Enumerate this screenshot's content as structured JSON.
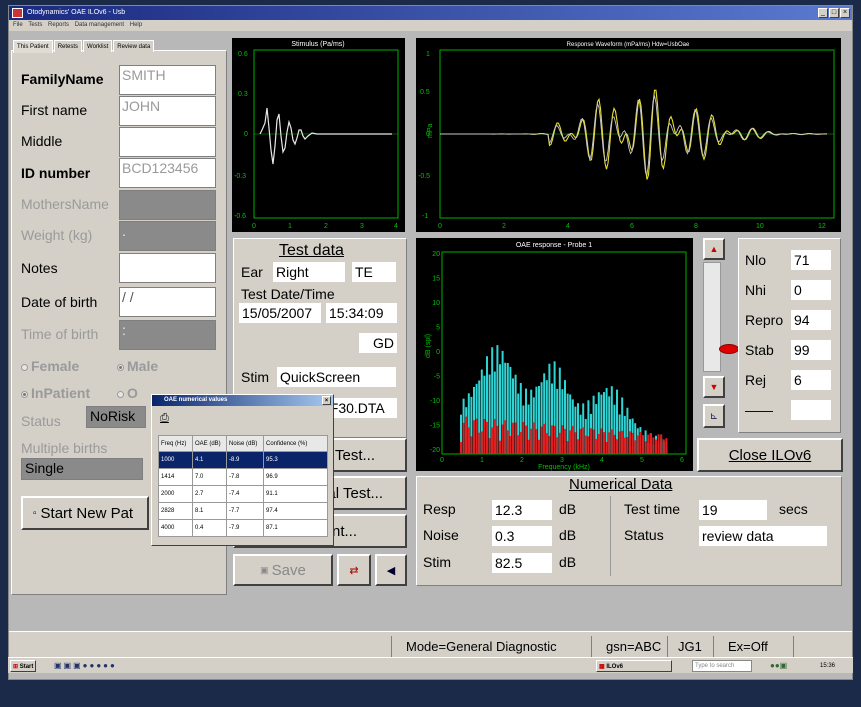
{
  "window": {
    "title": "Otodynamics' OAE ILOv6 - Usb",
    "controls": [
      "_",
      "□",
      "×"
    ]
  },
  "menu": [
    "File",
    "Tests",
    "Reports",
    "Data management",
    "Help"
  ],
  "tabs": [
    "This Patient",
    "Retests",
    "Worklist",
    "Review data"
  ],
  "patient": {
    "family_name_label": "FamilyName",
    "family_name": "SMITH",
    "first_name_label": "First name",
    "first_name": "JOHN",
    "middle_label": "Middle",
    "middle": "",
    "id_label": "ID number",
    "id": "BCD123456",
    "mothers_name_label": "MothersName",
    "mothers_name": "",
    "weight_label": "Weight (kg)",
    "weight": ".",
    "notes_label": "Notes",
    "notes": "",
    "dob_label": "Date of birth",
    "dob": " /  /",
    "tob_label": "Time of birth",
    "tob": ":",
    "female_label": "Female",
    "male_label": "Male",
    "inpatient_label": "InPatient",
    "outpatient_label": "O",
    "status_label": "Status",
    "status": "NoRisk",
    "multiple_births_label": "Multiple births",
    "multiple_births": "Single",
    "start_new_label": "Start New Pat"
  },
  "stimulus_chart": {
    "title": "Stimulus (Pa/ms)",
    "yticks": [
      "0.6",
      "0.3",
      "0",
      "-0.3",
      "-0.6"
    ],
    "xticks": [
      "0",
      "1",
      "2",
      "3",
      "4"
    ]
  },
  "response_chart": {
    "title": "Response Waveform (mPa/ms) Hdw=UsbOae",
    "ylabel": "mPa",
    "yticks": [
      "1",
      "0.5",
      "0",
      "-0.5",
      "-1"
    ],
    "xticks": [
      "0",
      "2",
      "4",
      "6",
      "8",
      "10",
      "12"
    ]
  },
  "oae_chart": {
    "title": "OAE response - Probe 1",
    "ylabel": "dB (spl)",
    "xlabel": "Frequency (kHz)",
    "yticks": [
      "20",
      "15",
      "10",
      "5",
      "0",
      "-5",
      "-10",
      "-15",
      "-20"
    ],
    "xticks": [
      "0",
      "1",
      "2",
      "3",
      "4",
      "5",
      "6"
    ]
  },
  "test_data": {
    "title": "Test data",
    "ear_label": "Ear",
    "ear": "Right",
    "te": "TE",
    "date_label": "Test Date/Time",
    "date": "15/05/2007",
    "time": "15:34:09",
    "operator": "GD",
    "stim_label": "Stim",
    "stim": "QuickScreen",
    "file": "5F30.DTA"
  },
  "buttons": {
    "test": "Test...",
    "general_test": "ral Test...",
    "print": "nt...",
    "save": "Save",
    "close": "Close ILOv6"
  },
  "stats": [
    {
      "label": "Nlo",
      "value": "71"
    },
    {
      "label": "Nhi",
      "value": "0"
    },
    {
      "label": "Repro",
      "value": "94"
    },
    {
      "label": "Stab",
      "value": "99"
    },
    {
      "label": "Rej",
      "value": "6"
    },
    {
      "label": "——",
      "value": ""
    }
  ],
  "numerical": {
    "title": "Numerical Data",
    "resp_label": "Resp",
    "resp": "12.3",
    "noise_label": "Noise",
    "noise": "0.3",
    "stim_label": "Stim",
    "stim": "82.5",
    "unit": "dB",
    "test_time_label": "Test time",
    "test_time": "19",
    "secs": "secs",
    "status_label": "Status",
    "status": "review data"
  },
  "dialog": {
    "title": "OAE numerical values",
    "headers": [
      "Freq (Hz)",
      "OAE (dB)",
      "Noise (dB)",
      "Confidence (%)"
    ],
    "rows": [
      [
        "1000",
        "4.1",
        "-8.9",
        "95.3"
      ],
      [
        "1414",
        "7.0",
        "-7.8",
        "96.9"
      ],
      [
        "2000",
        "2.7",
        "-7.4",
        "91.1"
      ],
      [
        "2828",
        "8.1",
        "-7.7",
        "97.4"
      ],
      [
        "4000",
        "0.4",
        "-7.9",
        "87.1"
      ]
    ]
  },
  "statusbar": {
    "mode": "Mode=General Diagnostic",
    "gsn": "gsn=ABC",
    "jg": "JG1",
    "ex": "Ex=Off"
  },
  "taskbar": {
    "start": "Start",
    "task": "ILOv6",
    "search_placeholder": "Type to search",
    "clock": "15:36"
  },
  "colors": {
    "cyan": "#2fd4d4",
    "red": "#e02020",
    "trace": "#e8e030",
    "chart_green": "#00b000"
  }
}
